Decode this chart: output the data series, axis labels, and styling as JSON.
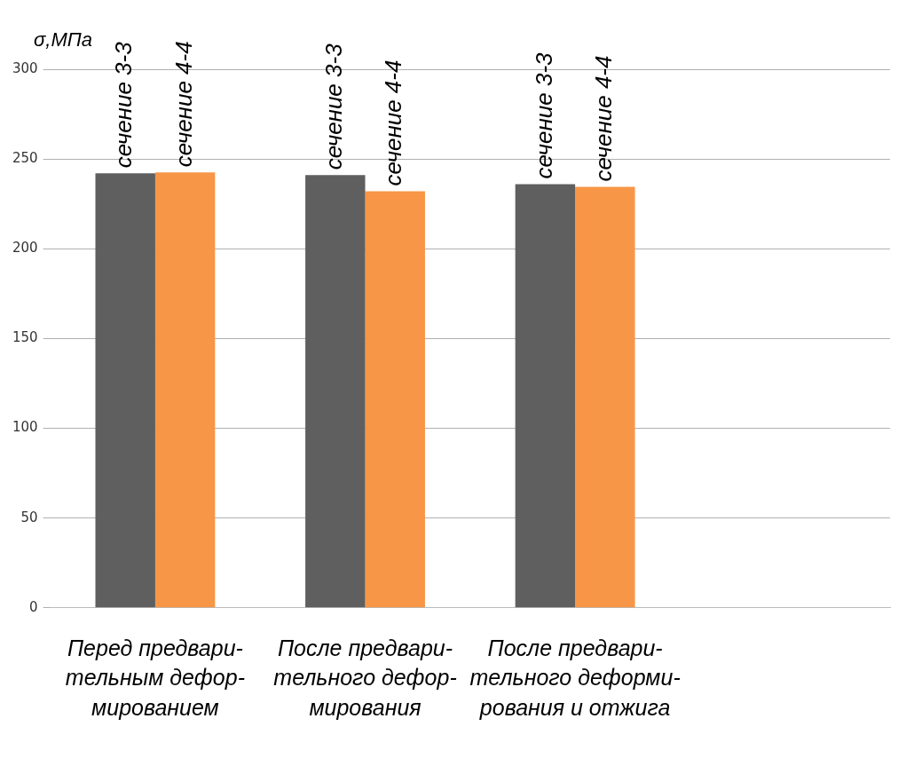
{
  "chart_data": {
    "type": "bar",
    "ylabel": "σ,МПа",
    "categories": [
      "Перед предвари-\nтельным дефор-\nмированием",
      "После предвари-\nтельного дефор-\nмирования",
      "После предвари-\nтельного деформи-\nрования и отжига",
      null
    ],
    "series": [
      {
        "name": "сечение 3-3",
        "color": "#5f5f5f",
        "values": [
          242,
          241,
          236,
          null
        ]
      },
      {
        "name": "сечение 4-4",
        "color": "#f79646",
        "values": [
          242.5,
          232,
          234.5,
          null
        ]
      }
    ],
    "ylim": [
      0,
      300
    ],
    "yticks": [
      0,
      50,
      100,
      150,
      200,
      250,
      300
    ],
    "grid": "y",
    "legend": false
  }
}
